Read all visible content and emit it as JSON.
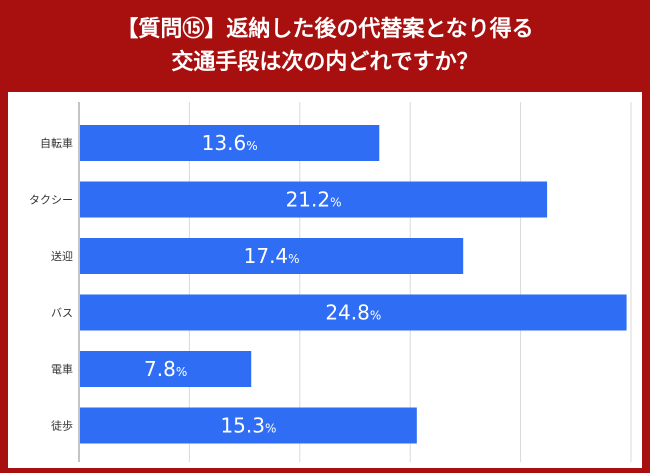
{
  "header": {
    "title_line1": "【質問⑮】返納した後の代替案となり得る",
    "title_line2": "交通手段は次の内どれですか？"
  },
  "colors": {
    "frame": "#a81010",
    "bar": "#2f6df5",
    "grid": "#d9d9d9"
  },
  "chart_data": {
    "type": "bar",
    "orientation": "horizontal",
    "title": "",
    "xlabel": "",
    "ylabel": "",
    "categories": [
      "自転車",
      "タクシー",
      "送迎",
      "バス",
      "電車",
      "徒歩"
    ],
    "values": [
      13.6,
      21.2,
      17.4,
      24.8,
      7.8,
      15.3
    ],
    "value_suffix": "%",
    "xlim": [
      0,
      25
    ],
    "grid": true
  }
}
